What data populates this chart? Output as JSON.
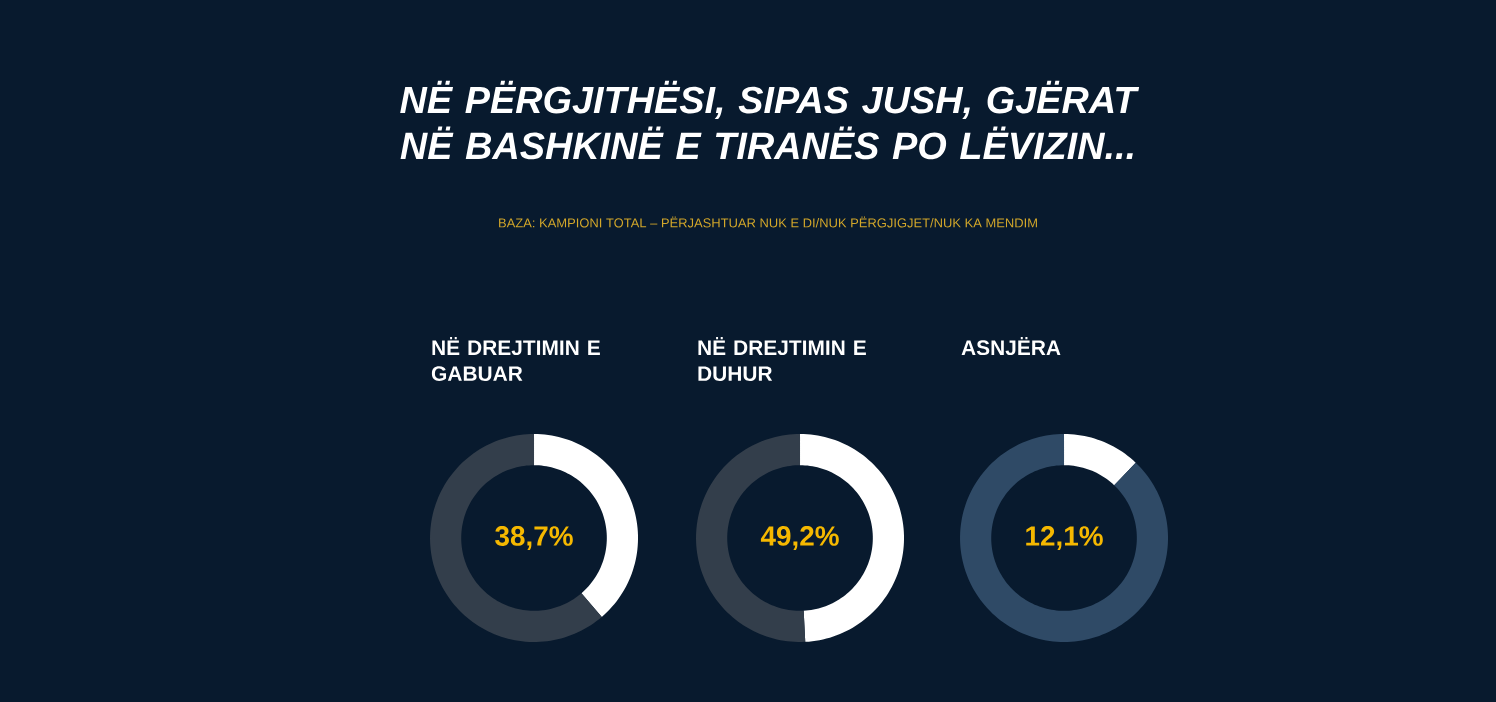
{
  "chart_data": [
    {
      "type": "other",
      "title": "NË PËRGJITHËSI, SIPAS JUSH, GJËRAT NË BASHKINË E TIRANËS PO LËVIZIN...",
      "annotations": [
        "BAZA: KAMPIONI TOTAL – PËRJASHTUAR NUK E DI/NUK PËRGJIGJET/NUK KA MENDIM"
      ]
    },
    {
      "type": "donut",
      "title": "NË DREJTIMIN E GABUAR",
      "categories": [
        null,
        null
      ],
      "values": [
        38.7,
        61.3
      ],
      "colors": [
        "#ffffff",
        "#333e4b"
      ],
      "annotations": [
        "38,7%"
      ]
    },
    {
      "type": "donut",
      "title": "NË DREJTIMIN E DUHUR",
      "categories": [
        null,
        null
      ],
      "values": [
        49.2,
        50.8
      ],
      "colors": [
        "#ffffff",
        "#333e4b"
      ],
      "annotations": [
        "49,2%"
      ]
    },
    {
      "type": "donut",
      "title": "ASNJËRA",
      "categories": [
        null,
        null
      ],
      "values": [
        12.1,
        87.9
      ],
      "colors": [
        "#ffffff",
        "#2f4a66"
      ],
      "annotations": [
        "12,1%"
      ]
    }
  ]
}
